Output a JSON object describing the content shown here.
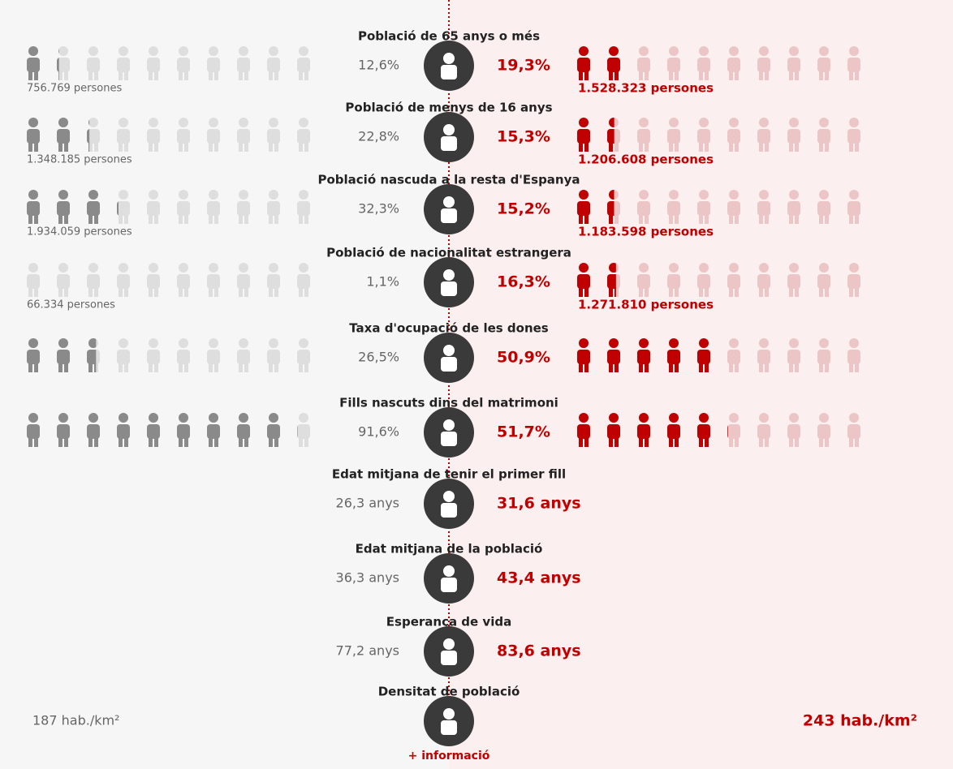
{
  "rows": [
    {
      "title": "Població de 65 anys o més",
      "left_value": 12.6,
      "left_label": "12,6%",
      "right_value": 19.3,
      "right_label": "19,3%",
      "left_count": "756.769 persones",
      "right_count": "1.528.323 persones"
    },
    {
      "title": "Població de menys de 16 anys",
      "left_value": 22.8,
      "left_label": "22,8%",
      "right_value": 15.3,
      "right_label": "15,3%",
      "left_count": "1.348.185 persones",
      "right_count": "1.206.608 persones"
    },
    {
      "title": "Població nascuda a la resta d'Espanya",
      "left_value": 32.3,
      "left_label": "32,3%",
      "right_value": 15.2,
      "right_label": "15,2%",
      "left_count": "1.934.059 persones",
      "right_count": "1.183.598 persones"
    },
    {
      "title": "Població de nacionalitat estrangera",
      "left_value": 1.1,
      "left_label": "1,1%",
      "right_value": 16.3,
      "right_label": "16,3%",
      "left_count": "66.334 persones",
      "right_count": "1.271.810 persones"
    },
    {
      "title": "Taxa d'ocupació de les dones",
      "left_value": 26.5,
      "left_label": "26,5%",
      "right_value": 50.9,
      "right_label": "50,9%"
    },
    {
      "title": "Fills nascuts dins del matrimoni",
      "left_value": 91.6,
      "left_label": "91,6%",
      "right_value": 51.7,
      "right_label": "51,7%"
    },
    {
      "title": "Edat mitjana de tenir el primer fill",
      "left_label": "26,3 anys",
      "right_label": "31,6 anys"
    },
    {
      "title": "Edat mitjana de la població",
      "left_label": "36,3 anys",
      "right_label": "43,4 anys"
    },
    {
      "title": "Esperança de vida",
      "left_label": "77,2 anys",
      "right_label": "83,6 anys"
    },
    {
      "title": "Densitat de població",
      "left_label": "187 hab./km²",
      "right_label": "243 hab./km²"
    }
  ],
  "footer": "+ informació"
}
